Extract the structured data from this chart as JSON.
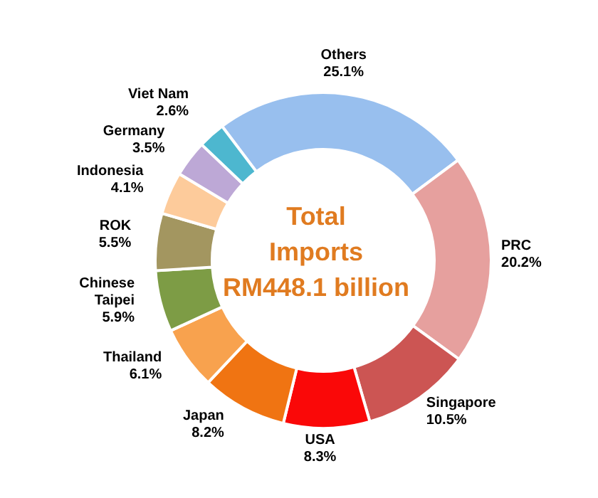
{
  "chart_data": {
    "type": "donut",
    "title": "Total Imports",
    "subtitle": "RM448.1 billion",
    "categories": [
      "Others",
      "PRC",
      "Singapore",
      "USA",
      "Japan",
      "Thailand",
      "Chinese Taipei",
      "ROK",
      "Indonesia",
      "Germany",
      "Viet Nam"
    ],
    "values": [
      25.1,
      20.2,
      10.5,
      8.3,
      8.2,
      6.1,
      5.9,
      5.5,
      4.1,
      3.5,
      2.6
    ],
    "colors": [
      "#98bfee",
      "#e6a09e",
      "#cc5553",
      "#fa0808",
      "#f07412",
      "#f8a24e",
      "#7d9c45",
      "#a39660",
      "#fdcb9b",
      "#bda8d6",
      "#4db7cf"
    ],
    "value_labels": [
      "25.1%",
      "20.2%",
      "10.5%",
      "8.3%",
      "8.2%",
      "6.1%",
      "5.9%",
      "5.5%",
      "4.1%",
      "3.5%",
      "2.6%"
    ]
  }
}
